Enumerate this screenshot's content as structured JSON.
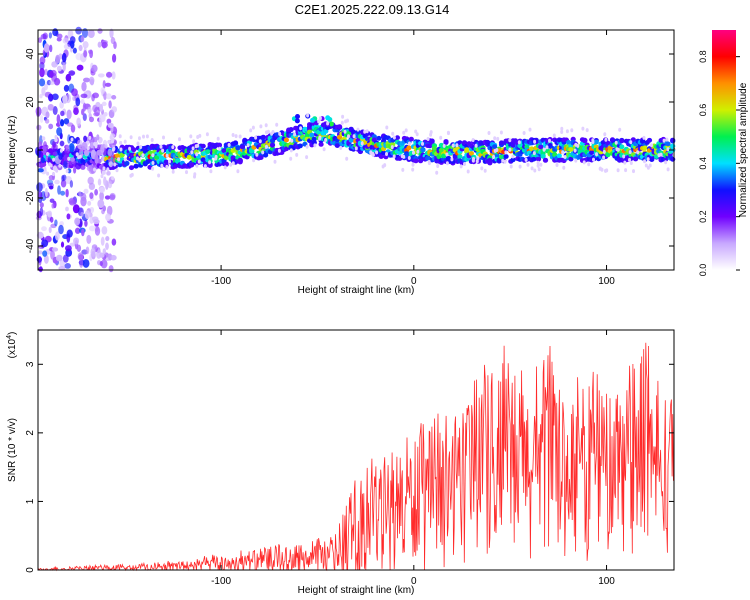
{
  "title": "C2E1.2025.222.09.13.G14",
  "chart_data": [
    {
      "type": "heatmap",
      "xlabel": "Height of straight line (km)",
      "ylabel": "Frequency (Hz)",
      "xlim": [
        -195,
        135
      ],
      "ylim": [
        -50,
        50
      ],
      "xticks": [
        -100,
        0,
        100
      ],
      "yticks": [
        -40,
        -20,
        0,
        20,
        40
      ],
      "xtick_labels": [
        "-100",
        "0",
        "100"
      ],
      "ytick_labels": [
        "-40",
        "-20",
        "0",
        "20",
        "40"
      ],
      "colorbar": {
        "label": "Normalized spectral amplitude",
        "range": [
          0,
          0.9
        ],
        "ticks": [
          0.0,
          0.2,
          0.4,
          0.6,
          0.8
        ],
        "tick_labels": [
          "0.0",
          "0.2",
          "0.4",
          "0.6",
          "0.8"
        ],
        "colors": [
          "#ffffff",
          "#c8a8ff",
          "#7000ff",
          "#1010ff",
          "#00e0ff",
          "#00f050",
          "#d0f000",
          "#ff9000",
          "#ff0000",
          "#ff0080"
        ]
      },
      "ridge": {
        "x": [
          -195,
          -150,
          -120,
          -100,
          -80,
          -70,
          -60,
          -55,
          -50,
          -45,
          -40,
          -30,
          -20,
          -10,
          0,
          20,
          40,
          60,
          80,
          100,
          120,
          135
        ],
        "frequency": [
          -3,
          -3,
          -2.5,
          -2,
          1,
          3,
          5,
          6,
          7,
          6.5,
          6,
          4,
          2,
          1,
          0,
          -1,
          -1,
          0,
          0,
          0,
          0,
          0
        ],
        "peak_amplitude": 0.9
      }
    },
    {
      "type": "line",
      "xlabel": "Height of straight line (km)",
      "ylabel": "SNR (10 * v/v)",
      "y_scale_label": "(x10",
      "y_scale_exponent": "4",
      "xlim": [
        -195,
        135
      ],
      "ylim": [
        0,
        3.5
      ],
      "xticks": [
        -100,
        0,
        100
      ],
      "yticks": [
        0,
        1,
        2,
        3
      ],
      "xtick_labels": [
        "-100",
        "0",
        "100"
      ],
      "ytick_labels": [
        "0",
        "1",
        "2",
        "3"
      ],
      "series": [
        {
          "color": "#ff2a2a",
          "envelope_x": [
            -195,
            -180,
            -160,
            -140,
            -120,
            -100,
            -80,
            -60,
            -40,
            -35,
            -30,
            -20,
            -10,
            0,
            10,
            20,
            30,
            40,
            50,
            60,
            70,
            80,
            90,
            100,
            110,
            120,
            130,
            135
          ],
          "mean": [
            0.01,
            0.02,
            0.03,
            0.04,
            0.06,
            0.09,
            0.12,
            0.14,
            0.22,
            0.35,
            0.6,
            0.75,
            0.95,
            1.0,
            1.05,
            1.2,
            1.4,
            1.6,
            1.55,
            1.5,
            1.55,
            1.5,
            1.45,
            1.45,
            1.55,
            1.6,
            1.5,
            1.5
          ],
          "max": [
            0.03,
            0.05,
            0.08,
            0.1,
            0.15,
            0.25,
            0.35,
            0.42,
            0.55,
            1.0,
            1.5,
            1.7,
            2.0,
            2.2,
            2.25,
            2.4,
            2.7,
            3.2,
            3.35,
            3.1,
            3.3,
            2.9,
            3.0,
            2.8,
            3.0,
            3.4,
            2.9,
            2.7
          ]
        }
      ]
    }
  ]
}
